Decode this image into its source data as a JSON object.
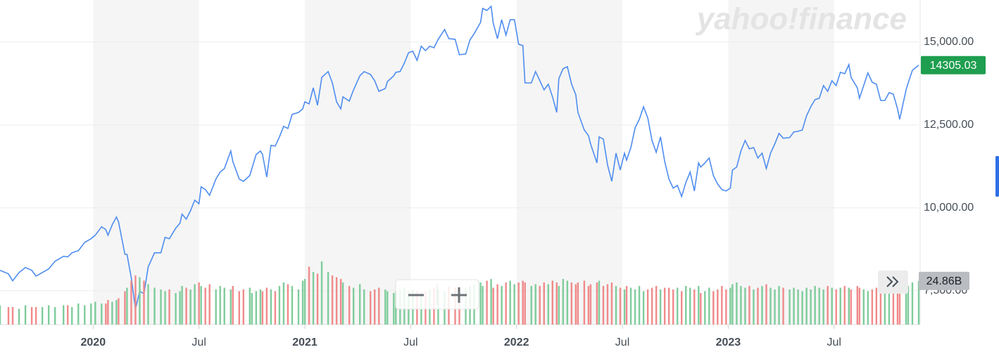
{
  "chart_data": {
    "type": "line",
    "watermark": "yahoo!finance",
    "xlim": [
      2019.56,
      2023.9
    ],
    "xticks": [
      {
        "value": 2020,
        "label": "2020"
      },
      {
        "value": 2020.5,
        "label": "Jul"
      },
      {
        "value": 2021,
        "label": "2021"
      },
      {
        "value": 2021.5,
        "label": "Jul"
      },
      {
        "value": 2022,
        "label": "2022"
      },
      {
        "value": 2022.5,
        "label": "Jul"
      },
      {
        "value": 2023,
        "label": "2023"
      },
      {
        "value": 2023.5,
        "label": "Jul"
      }
    ],
    "ylim": [
      6480,
      16270
    ],
    "yticks": [
      {
        "value": 7500,
        "label": "7,500.00"
      },
      {
        "value": 10000,
        "label": "10,000.00"
      },
      {
        "value": 12500,
        "label": "12,500.00"
      },
      {
        "value": 15000,
        "label": "15,000.00"
      }
    ],
    "y2lim": [
      0,
      185
    ],
    "grid": true,
    "x": [
      2019.56,
      2019.6,
      2019.62,
      2019.65,
      2019.68,
      2019.71,
      2019.73,
      2019.76,
      2019.79,
      2019.82,
      2019.86,
      2019.88,
      2019.9,
      2019.93,
      2019.96,
      2019.99,
      2020.01,
      2020.04,
      2020.06,
      2020.07,
      2020.09,
      2020.11,
      2020.12,
      2020.15,
      2020.16,
      2020.18,
      2020.2,
      2020.22,
      2020.24,
      2020.26,
      2020.29,
      2020.32,
      2020.34,
      2020.36,
      2020.39,
      2020.41,
      2020.42,
      2020.44,
      2020.46,
      2020.48,
      2020.5,
      2020.51,
      2020.53,
      2020.55,
      2020.58,
      2020.6,
      2020.62,
      2020.65,
      2020.66,
      2020.69,
      2020.71,
      2020.74,
      2020.75,
      2020.77,
      2020.79,
      2020.8,
      2020.82,
      2020.84,
      2020.86,
      2020.88,
      2020.9,
      2020.92,
      2020.94,
      2020.97,
      2020.99,
      2021.0,
      2021.02,
      2021.04,
      2021.06,
      2021.08,
      2021.11,
      2021.13,
      2021.15,
      2021.17,
      2021.18,
      2021.21,
      2021.23,
      2021.26,
      2021.28,
      2021.31,
      2021.33,
      2021.35,
      2021.38,
      2021.39,
      2021.42,
      2021.43,
      2021.45,
      2021.47,
      2021.49,
      2021.51,
      2021.53,
      2021.55,
      2021.57,
      2021.59,
      2021.61,
      2021.63,
      2021.66,
      2021.68,
      2021.71,
      2021.73,
      2021.76,
      2021.78,
      2021.8,
      2021.83,
      2021.84,
      2021.86,
      2021.88,
      2021.89,
      2021.91,
      2021.93,
      2021.95,
      2021.97,
      2021.99,
      2022.01,
      2022.03,
      2022.04,
      2022.07,
      2022.09,
      2022.11,
      2022.13,
      2022.15,
      2022.17,
      2022.19,
      2022.2,
      2022.22,
      2022.24,
      2022.26,
      2022.28,
      2022.29,
      2022.32,
      2022.34,
      2022.35,
      2022.38,
      2022.39,
      2022.41,
      2022.43,
      2022.45,
      2022.47,
      2022.49,
      2022.51,
      2022.52,
      2022.54,
      2022.56,
      2022.58,
      2022.6,
      2022.62,
      2022.64,
      2022.66,
      2022.68,
      2022.7,
      2022.72,
      2022.74,
      2022.76,
      2022.78,
      2022.8,
      2022.82,
      2022.84,
      2022.86,
      2022.87,
      2022.89,
      2022.91,
      2022.93,
      2022.95,
      2022.97,
      2022.99,
      2023.01,
      2023.02,
      2023.04,
      2023.06,
      2023.08,
      2023.1,
      2023.12,
      2023.14,
      2023.16,
      2023.18,
      2023.2,
      2023.22,
      2023.24,
      2023.26,
      2023.29,
      2023.31,
      2023.33,
      2023.35,
      2023.37,
      2023.39,
      2023.41,
      2023.43,
      2023.45,
      2023.47,
      2023.49,
      2023.51,
      2023.53,
      2023.55,
      2023.57,
      2023.58,
      2023.61,
      2023.62,
      2023.64,
      2023.66,
      2023.68,
      2023.7,
      2023.72,
      2023.74,
      2023.76,
      2023.78,
      2023.8,
      2023.81,
      2023.84,
      2023.85,
      2023.87,
      2023.9
    ],
    "series": [
      {
        "color": "#4f8def",
        "values": [
          8115,
          8010,
          7800,
          8050,
          8200,
          8115,
          7945,
          8050,
          8160,
          8390,
          8540,
          8520,
          8645,
          8710,
          8960,
          9070,
          9175,
          9430,
          9345,
          9175,
          9490,
          9725,
          9575,
          8600,
          8600,
          7900,
          6950,
          7480,
          7415,
          8220,
          8645,
          8645,
          9110,
          9070,
          9385,
          9535,
          9810,
          9660,
          9915,
          10230,
          10125,
          10635,
          10550,
          10380,
          10870,
          11080,
          11185,
          11715,
          11395,
          10870,
          10800,
          10975,
          11185,
          11610,
          11715,
          11610,
          10930,
          11885,
          11865,
          12140,
          12460,
          12395,
          12820,
          12880,
          12985,
          13200,
          13135,
          13620,
          13095,
          13940,
          14110,
          13770,
          13200,
          12985,
          13350,
          13220,
          13560,
          13985,
          14110,
          14025,
          13835,
          13515,
          13600,
          13810,
          13985,
          14090,
          14110,
          14365,
          14680,
          14725,
          14450,
          14875,
          14745,
          14875,
          14830,
          15085,
          15380,
          15105,
          15085,
          14620,
          14640,
          15065,
          15255,
          15595,
          16015,
          15955,
          16080,
          15570,
          15105,
          15675,
          15210,
          15675,
          15675,
          14935,
          14895,
          13770,
          13770,
          14110,
          13835,
          13560,
          13730,
          13350,
          12880,
          13900,
          14195,
          14260,
          13730,
          13410,
          12880,
          12350,
          12180,
          11925,
          11355,
          12140,
          12075,
          11290,
          10800,
          11650,
          11140,
          11650,
          11440,
          11820,
          12415,
          12670,
          13050,
          12715,
          12035,
          11675,
          12140,
          11395,
          10870,
          10595,
          10680,
          10340,
          10765,
          11080,
          10510,
          11355,
          11230,
          11355,
          11505,
          10975,
          10720,
          10550,
          10510,
          10595,
          11140,
          11230,
          11715,
          12035,
          11780,
          11820,
          11505,
          11650,
          11185,
          11650,
          11925,
          12245,
          12100,
          12120,
          12290,
          12310,
          12350,
          12775,
          13050,
          13265,
          13305,
          13690,
          13515,
          13835,
          13690,
          14090,
          14045,
          14320,
          13940,
          13620,
          13305,
          13690,
          14070,
          13790,
          13730,
          13240,
          13240,
          13475,
          13430,
          12985,
          12670,
          13560,
          13770,
          14150,
          14305.03
        ],
        "label_color": "#1e9e4f"
      },
      {
        "type": "bar",
        "axis": "y2",
        "up_color": "#7fcc9c",
        "down_color": "#f08a8a",
        "label_color": "#b9bcc0",
        "values": [
          11,
          10,
          10,
          9,
          11,
          10,
          10,
          10,
          11,
          10,
          11,
          11,
          10,
          12,
          11,
          12,
          13,
          12,
          12,
          14,
          13,
          14,
          15,
          19,
          21,
          25,
          28,
          27,
          25,
          23,
          21,
          20,
          19,
          20,
          18,
          19,
          22,
          21,
          20,
          23,
          24,
          22,
          21,
          23,
          20,
          22,
          21,
          20,
          22,
          19,
          20,
          21,
          18,
          19,
          20,
          19,
          21,
          20,
          19,
          22,
          24,
          23,
          22,
          20,
          25,
          26,
          33,
          30,
          29,
          36,
          30,
          28,
          27,
          26,
          24,
          22,
          21,
          23,
          20,
          19,
          20,
          21,
          20,
          19,
          18,
          19,
          20,
          21,
          19,
          20,
          19,
          18,
          19,
          20,
          21,
          20,
          19,
          22,
          21,
          20,
          21,
          22,
          23,
          24,
          22,
          25,
          26,
          21,
          23,
          22,
          24,
          25,
          23,
          24,
          25,
          24,
          22,
          23,
          22,
          24,
          23,
          25,
          24,
          22,
          26,
          25,
          24,
          23,
          24,
          25,
          22,
          23,
          24,
          25,
          22,
          23,
          24,
          22,
          21,
          20,
          22,
          21,
          20,
          22,
          19,
          20,
          21,
          22,
          20,
          21,
          21,
          20,
          21,
          19,
          22,
          21,
          20,
          22,
          18,
          19,
          21,
          19,
          20,
          22,
          20,
          21,
          23,
          24,
          22,
          21,
          22,
          20,
          21,
          22,
          23,
          21,
          20,
          22,
          21,
          20,
          21,
          20,
          19,
          21,
          20,
          22,
          21,
          20,
          22,
          21,
          20,
          21,
          22,
          21,
          20,
          22,
          21,
          20,
          19,
          20,
          21,
          20,
          19,
          22,
          21,
          20,
          23,
          21,
          22,
          24,
          24.86
        ],
        "value_labels": [
          null,
          null,
          null,
          null,
          null,
          null,
          null,
          null,
          null,
          null,
          null,
          null,
          null,
          null,
          null,
          null,
          null,
          null,
          null,
          null,
          null,
          null,
          null,
          null,
          null,
          null,
          null,
          null,
          null,
          null,
          null,
          null,
          null,
          null,
          null,
          null,
          null,
          null,
          null,
          null,
          null,
          null,
          null,
          null,
          null,
          null,
          null,
          null,
          null,
          null,
          null,
          null,
          null,
          null,
          null,
          null,
          null,
          null,
          null,
          null,
          null,
          null,
          null,
          null,
          null,
          null,
          null,
          null,
          null,
          null,
          null,
          null,
          null,
          null,
          null,
          null,
          null,
          null,
          null,
          null,
          null,
          null,
          null,
          null,
          null,
          null,
          null,
          null,
          null,
          null,
          null,
          null,
          null,
          null,
          null,
          null,
          null,
          null,
          null,
          null,
          null,
          null,
          null,
          null,
          null,
          null,
          null,
          null,
          null,
          null,
          null,
          null,
          null,
          null,
          null,
          null,
          null,
          null,
          null,
          null,
          null,
          null,
          null,
          null,
          null,
          null,
          null,
          null,
          null,
          null,
          null,
          null,
          null,
          null,
          null,
          null,
          null,
          null,
          null,
          null,
          null,
          null,
          null,
          null,
          null,
          null,
          null,
          null,
          null,
          null,
          null,
          null,
          null,
          null,
          null,
          null,
          null,
          null,
          null,
          null,
          null,
          null,
          null,
          null,
          null,
          null,
          null,
          null,
          null,
          null,
          null,
          null,
          null,
          null,
          null,
          null,
          null,
          null,
          null,
          null,
          null,
          null,
          null,
          null,
          null,
          null,
          null,
          null,
          null,
          null,
          null,
          null,
          null,
          null,
          null,
          null,
          null,
          null,
          null,
          null,
          null,
          null,
          null,
          null,
          null,
          null,
          null,
          null,
          null,
          null,
          "24.86B"
        ]
      }
    ]
  }
}
